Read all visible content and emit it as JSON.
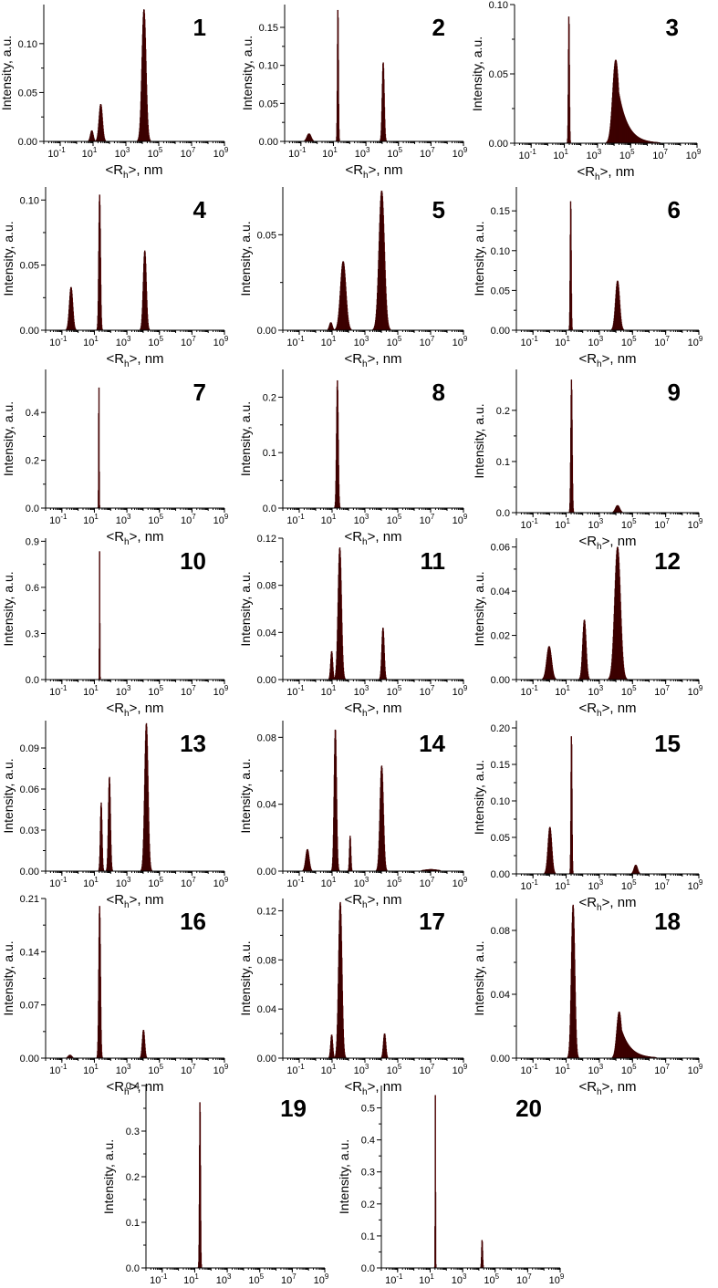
{
  "chart_data": [
    {
      "id": "1",
      "type": "bar",
      "panel_label": "1",
      "ylabel": "Intensity, a.u.",
      "xlabel": "<R_h>, nm",
      "xscale": "log",
      "xlim": [
        0.01,
        1000000000
      ],
      "ylim": [
        0,
        0.14
      ],
      "yticks": [
        "0.00",
        "0.05",
        "0.10"
      ],
      "ytick_values": [
        0,
        0.05,
        0.1
      ],
      "peaks": [
        {
          "center": 8,
          "height": 0.011,
          "width": 0.08
        },
        {
          "center": 28,
          "height": 0.038,
          "width": 0.1
        },
        {
          "center": 12000,
          "height": 0.135,
          "width": 0.12
        }
      ]
    },
    {
      "id": "2",
      "type": "bar",
      "panel_label": "2",
      "ylabel": "Intensity, a.u.",
      "xlabel": "<R_h>, nm",
      "xscale": "log",
      "xlim": [
        0.01,
        1000000000
      ],
      "ylim": [
        0,
        0.18
      ],
      "yticks": [
        "0.00",
        "0.05",
        "0.10",
        "0.15"
      ],
      "ytick_values": [
        0,
        0.05,
        0.1,
        0.15
      ],
      "peaks": [
        {
          "center": 0.3,
          "height": 0.01,
          "width": 0.12
        },
        {
          "center": 18,
          "height": 0.176,
          "width": 0.03
        },
        {
          "center": 11000,
          "height": 0.104,
          "width": 0.06
        }
      ]
    },
    {
      "id": "3",
      "type": "bar",
      "panel_label": "3",
      "ylabel": "Intensity, a.u.",
      "xlabel": "<R_h>, nm",
      "xscale": "log",
      "xlim": [
        0.01,
        1000000000
      ],
      "ylim": [
        0,
        0.1
      ],
      "yticks": [
        "0.00",
        "0.05",
        "0.10"
      ],
      "ytick_values": [
        0,
        0.05,
        0.1
      ],
      "peaks": [
        {
          "center": 18,
          "height": 0.093,
          "width": 0.03
        },
        {
          "center": 12000,
          "height": 0.06,
          "width": 0.18,
          "tail": true
        }
      ]
    },
    {
      "id": "4",
      "type": "bar",
      "panel_label": "4",
      "ylabel": "Intensity, a.u.",
      "xlabel": "<R_h>, nm",
      "xscale": "log",
      "xlim": [
        0.01,
        1000000000
      ],
      "ylim": [
        0,
        0.11
      ],
      "yticks": [
        "0.00",
        "0.05",
        "0.10"
      ],
      "ytick_values": [
        0,
        0.05,
        0.1
      ],
      "peaks": [
        {
          "center": 0.35,
          "height": 0.033,
          "width": 0.1
        },
        {
          "center": 20,
          "height": 0.104,
          "width": 0.05
        },
        {
          "center": 12000,
          "height": 0.061,
          "width": 0.09
        }
      ]
    },
    {
      "id": "5",
      "type": "bar",
      "panel_label": "5",
      "ylabel": "Intensity, a.u.",
      "xlabel": "<R_h>, nm",
      "xscale": "log",
      "xlim": [
        0.01,
        1000000000
      ],
      "ylim": [
        0,
        0.075
      ],
      "yticks": [
        "0.00",
        "0.05"
      ],
      "ytick_values": [
        0,
        0.05
      ],
      "peaks": [
        {
          "center": 8,
          "height": 0.004,
          "width": 0.08
        },
        {
          "center": 45,
          "height": 0.036,
          "width": 0.16
        },
        {
          "center": 10000,
          "height": 0.073,
          "width": 0.16
        }
      ]
    },
    {
      "id": "6",
      "type": "bar",
      "panel_label": "6",
      "ylabel": "Intensity, a.u.",
      "xlabel": "<R_h>, nm",
      "xscale": "log",
      "xlim": [
        0.01,
        1000000000
      ],
      "ylim": [
        0,
        0.18
      ],
      "yticks": [
        "0.00",
        "0.05",
        "0.10",
        "0.15"
      ],
      "ytick_values": [
        0,
        0.05,
        0.1,
        0.15
      ],
      "peaks": [
        {
          "center": 18,
          "height": 0.165,
          "width": 0.03
        },
        {
          "center": 12000,
          "height": 0.062,
          "width": 0.12
        }
      ]
    },
    {
      "id": "7",
      "type": "bar",
      "panel_label": "7",
      "ylabel": "Intensity, a.u.",
      "xlabel": "<R_h>, nm",
      "xscale": "log",
      "xlim": [
        0.01,
        1000000000
      ],
      "ylim": [
        0,
        0.58
      ],
      "yticks": [
        "0.0",
        "0.2",
        "0.4"
      ],
      "ytick_values": [
        0,
        0.2,
        0.4
      ],
      "peaks": [
        {
          "center": 18,
          "height": 0.545,
          "width": 0.015
        }
      ]
    },
    {
      "id": "8",
      "type": "bar",
      "panel_label": "8",
      "ylabel": "Intensity, a.u.",
      "xlabel": "<R_h>, nm",
      "xscale": "log",
      "xlim": [
        0.01,
        1000000000
      ],
      "ylim": [
        0,
        0.25
      ],
      "yticks": [
        "0.0",
        "0.1",
        "0.2"
      ],
      "ytick_values": [
        0,
        0.1,
        0.2
      ],
      "peaks": [
        {
          "center": 20,
          "height": 0.23,
          "width": 0.05
        }
      ]
    },
    {
      "id": "9",
      "type": "bar",
      "panel_label": "9",
      "ylabel": "Intensity, a.u.",
      "xlabel": "<R_h>, nm",
      "xscale": "log",
      "xlim": [
        0.01,
        1000000000
      ],
      "ylim": [
        0,
        0.28
      ],
      "yticks": [
        "0.0",
        "0.1",
        "0.2"
      ],
      "ytick_values": [
        0,
        0.1,
        0.2
      ],
      "peaks": [
        {
          "center": 20,
          "height": 0.26,
          "width": 0.04
        },
        {
          "center": 12000,
          "height": 0.014,
          "width": 0.12
        }
      ]
    },
    {
      "id": "10",
      "type": "bar",
      "panel_label": "10",
      "ylabel": "Intensity, a.u.",
      "xlabel": "<R_h>, nm",
      "xscale": "log",
      "xlim": [
        0.01,
        1000000000
      ],
      "ylim": [
        0,
        0.92
      ],
      "yticks": [
        "0.0",
        "0.3",
        "0.6",
        "0.9"
      ],
      "ytick_values": [
        0,
        0.3,
        0.6,
        0.9
      ],
      "peaks": [
        {
          "center": 20,
          "height": 0.85,
          "width": 0.012
        }
      ]
    },
    {
      "id": "11",
      "type": "bar",
      "panel_label": "11",
      "ylabel": "Intensity, a.u.",
      "xlabel": "<R_h>, nm",
      "xscale": "log",
      "xlim": [
        0.01,
        1000000000
      ],
      "ylim": [
        0,
        0.12
      ],
      "yticks": [
        "0.00",
        "0.04",
        "0.08",
        "0.12"
      ],
      "ytick_values": [
        0,
        0.04,
        0.08,
        0.12
      ],
      "peaks": [
        {
          "center": 9,
          "height": 0.024,
          "width": 0.06
        },
        {
          "center": 28,
          "height": 0.112,
          "width": 0.1
        },
        {
          "center": 12000,
          "height": 0.044,
          "width": 0.07
        }
      ]
    },
    {
      "id": "12",
      "type": "bar",
      "panel_label": "12",
      "ylabel": "Intensity, a.u.",
      "xlabel": "<R_h>, nm",
      "xscale": "log",
      "xlim": [
        0.01,
        1000000000
      ],
      "ylim": [
        0,
        0.064
      ],
      "yticks": [
        "0.00",
        "0.02",
        "0.04",
        "0.06"
      ],
      "ytick_values": [
        0,
        0.02,
        0.04,
        0.06
      ],
      "peaks": [
        {
          "center": 0.9,
          "height": 0.015,
          "width": 0.14
        },
        {
          "center": 120,
          "height": 0.027,
          "width": 0.1
        },
        {
          "center": 12000,
          "height": 0.06,
          "width": 0.17
        }
      ]
    },
    {
      "id": "13",
      "type": "bar",
      "panel_label": "13",
      "ylabel": "Intensity, a.u.",
      "xlabel": "<R_h>, nm",
      "xscale": "log",
      "xlim": [
        0.01,
        1000000000
      ],
      "ylim": [
        0,
        0.11
      ],
      "yticks": [
        "0.00",
        "0.03",
        "0.06",
        "0.09"
      ],
      "ytick_values": [
        0,
        0.03,
        0.06,
        0.09
      ],
      "peaks": [
        {
          "center": 25,
          "height": 0.05,
          "width": 0.05
        },
        {
          "center": 80,
          "height": 0.069,
          "width": 0.06
        },
        {
          "center": 15000,
          "height": 0.108,
          "width": 0.1
        }
      ]
    },
    {
      "id": "14",
      "type": "bar",
      "panel_label": "14",
      "ylabel": "Intensity, a.u.",
      "xlabel": "<R_h>, nm",
      "xscale": "log",
      "xlim": [
        0.01,
        1000000000
      ],
      "ylim": [
        0,
        0.09
      ],
      "yticks": [
        "0.00",
        "0.04",
        "0.08"
      ],
      "ytick_values": [
        0,
        0.04,
        0.08
      ],
      "peaks": [
        {
          "center": 0.3,
          "height": 0.013,
          "width": 0.1
        },
        {
          "center": 15,
          "height": 0.085,
          "width": 0.07
        },
        {
          "center": 120,
          "height": 0.021,
          "width": 0.04
        },
        {
          "center": 10000,
          "height": 0.063,
          "width": 0.1
        },
        {
          "center": 10000000,
          "height": 0.001,
          "width": 0.4
        }
      ]
    },
    {
      "id": "15",
      "type": "bar",
      "panel_label": "15",
      "ylabel": "Intensity, a.u.",
      "xlabel": "<R_h>, nm",
      "xscale": "log",
      "xlim": [
        0.01,
        1000000000
      ],
      "ylim": [
        0,
        0.21
      ],
      "yticks": [
        "0.00",
        "0.05",
        "0.10",
        "0.15",
        "0.20"
      ],
      "ytick_values": [
        0,
        0.05,
        0.1,
        0.15,
        0.2
      ],
      "peaks": [
        {
          "center": 1,
          "height": 0.064,
          "width": 0.11
        },
        {
          "center": 20,
          "height": 0.192,
          "width": 0.03
        },
        {
          "center": 150000,
          "height": 0.012,
          "width": 0.1
        }
      ]
    },
    {
      "id": "16",
      "type": "bar",
      "panel_label": "16",
      "ylabel": "Intensity, a.u.",
      "xlabel": "<R_h>, nm",
      "xscale": "log",
      "xlim": [
        0.01,
        1000000000
      ],
      "ylim": [
        0,
        0.21
      ],
      "yticks": [
        "0.00",
        "0.07",
        "0.14",
        "0.21"
      ],
      "ytick_values": [
        0,
        0.07,
        0.14,
        0.21
      ],
      "peaks": [
        {
          "center": 0.3,
          "height": 0.004,
          "width": 0.1
        },
        {
          "center": 20,
          "height": 0.2,
          "width": 0.05
        },
        {
          "center": 10000,
          "height": 0.037,
          "width": 0.07
        }
      ]
    },
    {
      "id": "17",
      "type": "bar",
      "panel_label": "17",
      "ylabel": "Intensity, a.u.",
      "xlabel": "<R_h>, nm",
      "xscale": "log",
      "xlim": [
        0.01,
        1000000000
      ],
      "ylim": [
        0,
        0.13
      ],
      "yticks": [
        "0.00",
        "0.04",
        "0.08",
        "0.12"
      ],
      "ytick_values": [
        0,
        0.04,
        0.08,
        0.12
      ],
      "peaks": [
        {
          "center": 9,
          "height": 0.019,
          "width": 0.06
        },
        {
          "center": 30,
          "height": 0.127,
          "width": 0.1
        },
        {
          "center": 15000,
          "height": 0.02,
          "width": 0.07
        }
      ]
    },
    {
      "id": "18",
      "type": "bar",
      "panel_label": "18",
      "ylabel": "Intensity, a.u.",
      "xlabel": "<R_h>, nm",
      "xscale": "log",
      "xlim": [
        0.01,
        1000000000
      ],
      "ylim": [
        0,
        0.1
      ],
      "yticks": [
        "0.00",
        "0.04",
        "0.08"
      ],
      "ytick_values": [
        0,
        0.04,
        0.08
      ],
      "peaks": [
        {
          "center": 25,
          "height": 0.096,
          "width": 0.1
        },
        {
          "center": 15000,
          "height": 0.029,
          "width": 0.14,
          "tail": true
        }
      ]
    },
    {
      "id": "19",
      "type": "bar",
      "panel_label": "19",
      "ylabel": "Intensity, a.u.",
      "xlabel": "<R_h>, nm",
      "xscale": "log",
      "xlim": [
        0.01,
        1000000000
      ],
      "ylim": [
        0,
        0.4
      ],
      "yticks": [
        "0.0",
        "0.1",
        "0.2",
        "0.3",
        "0.4"
      ],
      "ytick_values": [
        0,
        0.1,
        0.2,
        0.3,
        0.4
      ],
      "peaks": [
        {
          "center": 20,
          "height": 0.37,
          "width": 0.03
        }
      ]
    },
    {
      "id": "20",
      "type": "bar",
      "panel_label": "20",
      "ylabel": "Intensity, a.u.",
      "xlabel": "<R_h>, nm",
      "xscale": "log",
      "xlim": [
        0.01,
        1000000000
      ],
      "ylim": [
        0,
        0.57
      ],
      "yticks": [
        "0.0",
        "0.1",
        "0.2",
        "0.3",
        "0.4",
        "0.5"
      ],
      "ytick_values": [
        0,
        0.1,
        0.2,
        0.3,
        0.4,
        0.5
      ],
      "peaks": [
        {
          "center": 20,
          "height": 0.55,
          "width": 0.012
        },
        {
          "center": 15000,
          "height": 0.088,
          "width": 0.03
        }
      ]
    }
  ],
  "axis": {
    "ylabel": "Intensity, a.u.",
    "xlabel_prefix": "<R",
    "xlabel_sub": "h",
    "xlabel_suffix": ">, nm",
    "xtick_base": "10",
    "xtick_exponents": [
      "-1",
      "1",
      "3",
      "5",
      "7",
      "9"
    ],
    "xtick_values": [
      0.1,
      10,
      1000,
      100000,
      10000000,
      1000000000
    ]
  }
}
